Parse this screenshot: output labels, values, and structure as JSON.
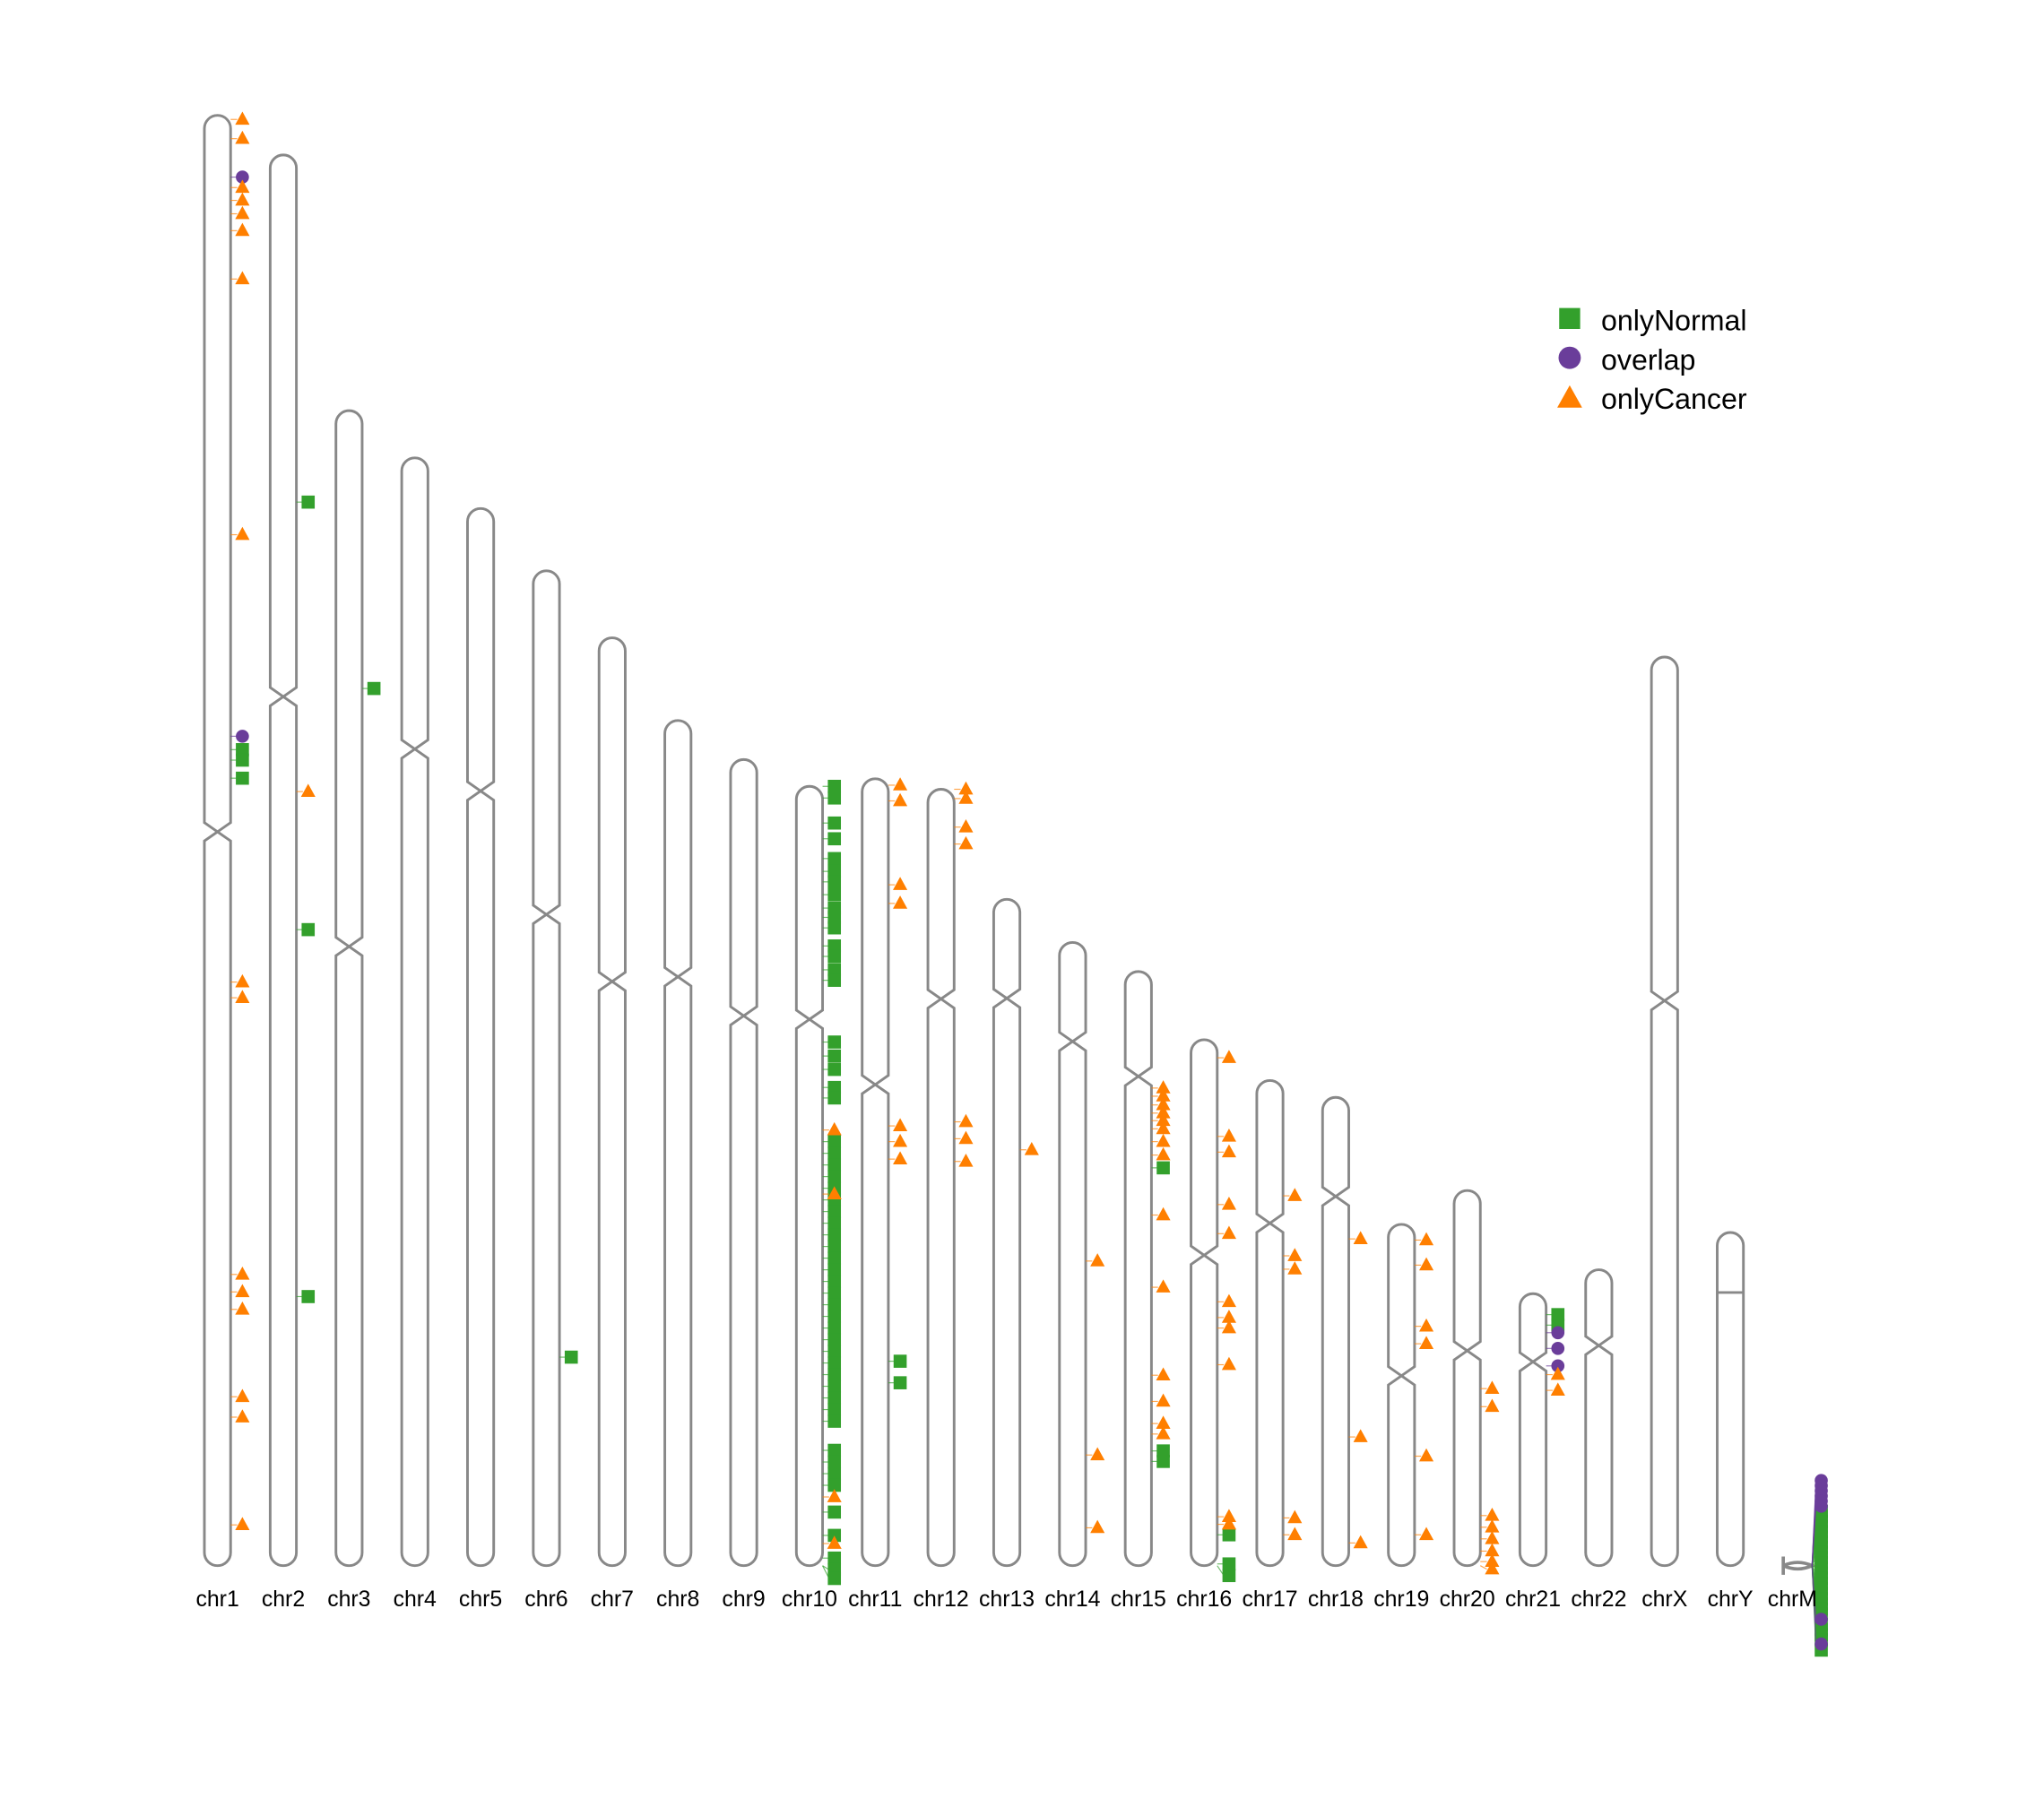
{
  "chart_data": {
    "type": "karyogram",
    "title": "",
    "units": "Mb",
    "colors": {
      "onlyNormal": "#33a02c",
      "overlap": "#6a3d9a",
      "onlyCancer": "#ff7f00",
      "chromosome": "#888888"
    },
    "legend": {
      "placement": "top-right",
      "entries": [
        {
          "key": "onlyNormal",
          "label": "onlyNormal",
          "shape": "square"
        },
        {
          "key": "overlap",
          "label": "overlap",
          "shape": "circle"
        },
        {
          "key": "onlyCancer",
          "label": "onlyCancer",
          "shape": "triangle"
        }
      ]
    },
    "chromosomes": [
      {
        "name": "chr1",
        "length": 249,
        "centromere": 123,
        "onlyCancer": [
          0.7,
          4,
          12.4,
          14.6,
          16.9,
          19.8,
          28.1,
          72,
          148.8,
          151.5,
          199,
          202,
          205,
          220,
          223.5,
          242
        ],
        "overlap": [
          10.6,
          106.6
        ],
        "onlyNormal": [
          108.9,
          110.7,
          113.8
        ]
      },
      {
        "name": "chr2",
        "length": 242.2,
        "centromere": 93,
        "onlyCancer": [
          109.3
        ],
        "overlap": [],
        "onlyNormal": [
          59.6,
          133,
          196
        ]
      },
      {
        "name": "chr3",
        "length": 198.3,
        "centromere": 92,
        "onlyCancer": [],
        "overlap": [],
        "onlyNormal": [
          47.7
        ]
      },
      {
        "name": "chr4",
        "length": 190.2,
        "centromere": 50,
        "onlyCancer": [],
        "overlap": [],
        "onlyNormal": []
      },
      {
        "name": "chr5",
        "length": 181.5,
        "centromere": 48.5,
        "onlyCancer": [],
        "overlap": [],
        "onlyNormal": []
      },
      {
        "name": "chr6",
        "length": 170.8,
        "centromere": 59,
        "onlyCancer": [],
        "overlap": [],
        "onlyNormal": [
          135
        ]
      },
      {
        "name": "chr7",
        "length": 159.3,
        "centromere": 59,
        "onlyCancer": [],
        "overlap": [],
        "onlyNormal": []
      },
      {
        "name": "chr8",
        "length": 145.1,
        "centromere": 44,
        "onlyCancer": [],
        "overlap": [],
        "onlyNormal": []
      },
      {
        "name": "chr9",
        "length": 138.4,
        "centromere": 44,
        "onlyCancer": [],
        "overlap": [],
        "onlyNormal": []
      },
      {
        "name": "chr10",
        "length": 133.8,
        "centromere": 40,
        "onlyCancer": [
          59,
          70,
          122,
          130
        ],
        "overlap": [],
        "onlyNormal": [
          0,
          2,
          6.3,
          9,
          12.4,
          14.6,
          16.4,
          18.6,
          20.9,
          22.5,
          24.3,
          27.4,
          29.2,
          31.5,
          33.3,
          43.9,
          46.3,
          48.6,
          51.7,
          53.5,
          61,
          63,
          65,
          67,
          69,
          71,
          73,
          75,
          77,
          79,
          81,
          83,
          85,
          87,
          89,
          91,
          93,
          95,
          97,
          99,
          101,
          103,
          105,
          107,
          109,
          114,
          116,
          118,
          120,
          124.6,
          128.6,
          132.5,
          134.5,
          136
        ]
      },
      {
        "name": "chr11",
        "length": 135.1,
        "centromere": 52.5,
        "onlyCancer": [
          1.1,
          3.8,
          18.2,
          21.4,
          59.6,
          62.3,
          65.3
        ],
        "overlap": [],
        "onlyNormal": [
          100,
          103.7
        ]
      },
      {
        "name": "chr12",
        "length": 133.3,
        "centromere": 36,
        "onlyCancer": [
          0,
          1.6,
          6.5,
          9.4,
          57.1,
          60,
          63.9
        ],
        "overlap": [],
        "onlyNormal": []
      },
      {
        "name": "chr13",
        "length": 114.4,
        "centromere": 17,
        "onlyCancer": [
          43
        ],
        "overlap": [],
        "onlyNormal": []
      },
      {
        "name": "chr14",
        "length": 107,
        "centromere": 17,
        "onlyCancer": [
          54.7,
          88,
          100.5
        ],
        "overlap": [],
        "onlyNormal": []
      },
      {
        "name": "chr15",
        "length": 102,
        "centromere": 18,
        "onlyCancer": [
          20,
          21.4,
          22.9,
          24.3,
          25.6,
          27,
          29.2,
          31.5,
          41.8,
          54.2,
          69.3,
          73.8,
          77.6,
          79.4
        ],
        "overlap": [],
        "onlyNormal": [
          33.7,
          82.3,
          84.1
        ]
      },
      {
        "name": "chr16",
        "length": 90.3,
        "centromere": 37,
        "onlyCancer": [
          3.1,
          16.6,
          19.3,
          28.3,
          33.3,
          45,
          47.7,
          49.5,
          55.8,
          81.9,
          83.2
        ],
        "overlap": [],
        "onlyNormal": [
          85,
          90,
          92
        ]
      },
      {
        "name": "chr17",
        "length": 83.3,
        "centromere": 24.5,
        "onlyCancer": [
          19.8,
          30.1,
          32.4,
          75.1,
          78
        ],
        "overlap": [],
        "onlyNormal": []
      },
      {
        "name": "chr18",
        "length": 80.4,
        "centromere": 17,
        "onlyCancer": [
          24.3,
          58.3,
          76.5
        ],
        "overlap": [],
        "onlyNormal": []
      },
      {
        "name": "chr19",
        "length": 58.6,
        "centromere": 26,
        "onlyCancer": [
          2.7,
          7,
          17.5,
          20.5,
          39.8,
          53.3
        ],
        "overlap": [],
        "onlyNormal": []
      },
      {
        "name": "chr20",
        "length": 64.4,
        "centromere": 27.5,
        "onlyCancer": [
          34,
          37.1,
          55.8,
          57.8,
          59.8,
          61.9,
          63.7,
          65
        ],
        "overlap": [],
        "onlyNormal": []
      },
      {
        "name": "chr21",
        "length": 46.7,
        "centromere": 11.7,
        "onlyCancer": [
          13.9,
          16.6
        ],
        "overlap": [
          6.7,
          9.4,
          12.4
        ],
        "onlyNormal": [
          3.6,
          5.4
        ]
      },
      {
        "name": "chr22",
        "length": 50.8,
        "centromere": 13,
        "onlyCancer": [],
        "overlap": [],
        "onlyNormal": []
      },
      {
        "name": "chrX",
        "length": 156,
        "centromere": 59,
        "onlyCancer": [],
        "overlap": [],
        "onlyNormal": []
      },
      {
        "name": "chrY",
        "length": 57.2,
        "centromere": 10.3,
        "onlyCancer": [],
        "overlap": [],
        "onlyNormal": []
      }
    ],
    "chrM": {
      "name": "chrM",
      "length_bp": 16569,
      "overlap": [
        0,
        500,
        1000,
        1500,
        2000,
        2500,
        13500,
        15900
      ],
      "onlyNormal": [
        3000,
        3500,
        4000,
        4500,
        5000,
        5500,
        6000,
        6500,
        7000,
        7500,
        8000,
        8500,
        9000,
        9500,
        10000,
        10500,
        11000,
        11500,
        12000,
        12500,
        13000,
        14000,
        14500,
        15000,
        15500,
        16500
      ]
    }
  }
}
